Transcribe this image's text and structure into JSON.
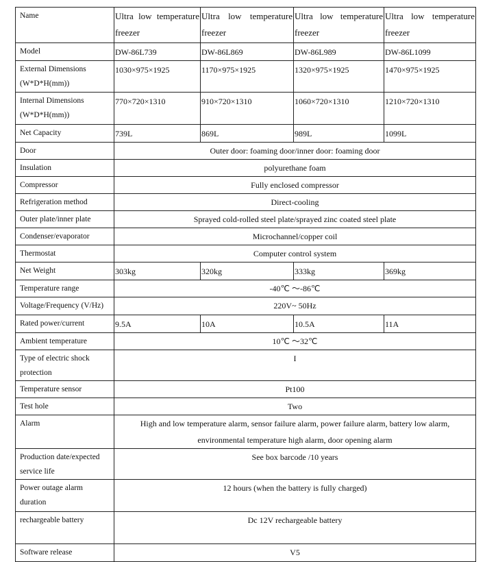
{
  "rows": [
    {
      "label": "Name",
      "values": [
        "Ultra low temperature freezer",
        "Ultra low temperature freezer",
        "Ultra low temperature freezer",
        "Ultra low temperature freezer"
      ]
    },
    {
      "label": "Model",
      "values": [
        "DW-86L739",
        "DW-86L869",
        "DW-86L989",
        "DW-86L1099"
      ]
    },
    {
      "label": "External Dimensions (W*D*H(mm))",
      "values": [
        "1030×975×1925",
        "1170×975×1925",
        "1320×975×1925",
        "1470×975×1925"
      ]
    },
    {
      "label": "Internal Dimensions (W*D*H(mm))",
      "values": [
        "770×720×1310",
        "910×720×1310",
        "1060×720×1310",
        "1210×720×1310"
      ]
    },
    {
      "label": "Net Capacity",
      "values": [
        "739L",
        "869L",
        "989L",
        "1099L"
      ]
    },
    {
      "label": "Door",
      "value": "Outer door: foaming door/inner door: foaming door"
    },
    {
      "label": "Insulation",
      "value": "polyurethane foam"
    },
    {
      "label": "Compressor",
      "value": "Fully enclosed compressor"
    },
    {
      "label": "Refrigeration method",
      "value": "Direct-cooling"
    },
    {
      "label": "Outer plate/inner plate",
      "value": "Sprayed cold-rolled steel plate/sprayed zinc coated steel plate"
    },
    {
      "label": "Condenser/evaporator",
      "value": "Microchannel/copper coil"
    },
    {
      "label": "Thermostat",
      "value": "Computer control system"
    },
    {
      "label": "Net Weight",
      "values": [
        "303kg",
        "320kg",
        "333kg",
        "369kg"
      ]
    },
    {
      "label": "Temperature range",
      "value": "-40℃ ～-86℃"
    },
    {
      "label": "Voltage/Frequency (V/Hz)",
      "value": "220V~ 50Hz"
    },
    {
      "label": "Rated power/current",
      "values": [
        "9.5A",
        "10A",
        "10.5A",
        "11A"
      ]
    },
    {
      "label": "Ambient temperature",
      "value": "10℃ ～32℃"
    },
    {
      "label": "Type of electric shock protection",
      "value": "I"
    },
    {
      "label": "Temperature sensor",
      "value": "Pt100"
    },
    {
      "label": "Test hole",
      "value": "Two"
    },
    {
      "label": "Alarm",
      "value": "High and low temperature alarm, sensor failure alarm, power failure alarm, battery low alarm, environmental temperature high alarm, door opening alarm"
    },
    {
      "label": "Production date/expected service life",
      "value": "See box barcode /10 years"
    },
    {
      "label": "Power outage alarm duration",
      "value": "12 hours (when the battery is fully charged)"
    },
    {
      "label": "rechargeable battery",
      "value": "Dc 12V rechargeable battery"
    },
    {
      "label": "Software release",
      "value": "V5"
    }
  ]
}
